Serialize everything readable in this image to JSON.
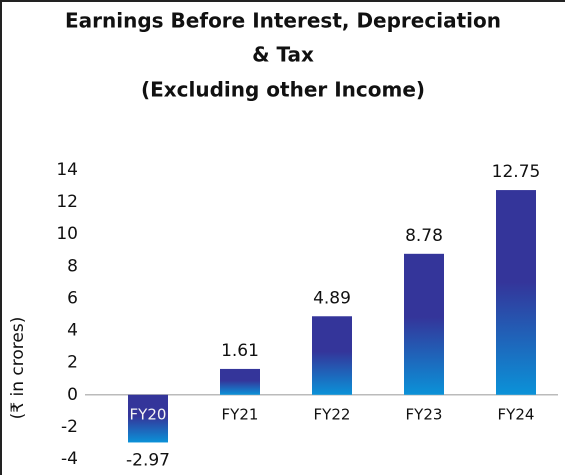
{
  "chart_data": {
    "type": "bar",
    "title": [
      "Earnings Before Interest, Depreciation",
      "& Tax",
      "(Excluding other Income)"
    ],
    "y_label": "(₹ in crores)",
    "categories": [
      "FY20",
      "FY21",
      "FY22",
      "FY23",
      "FY24"
    ],
    "values": [
      -2.97,
      1.61,
      4.89,
      8.78,
      12.75
    ],
    "color_top": "#34359a",
    "color_bottom": "#0b92d8",
    "ylim": [
      -4,
      14
    ],
    "yticks": [
      -4,
      -2,
      0,
      2,
      4,
      6,
      8,
      10,
      12,
      14
    ],
    "grid": false
  }
}
